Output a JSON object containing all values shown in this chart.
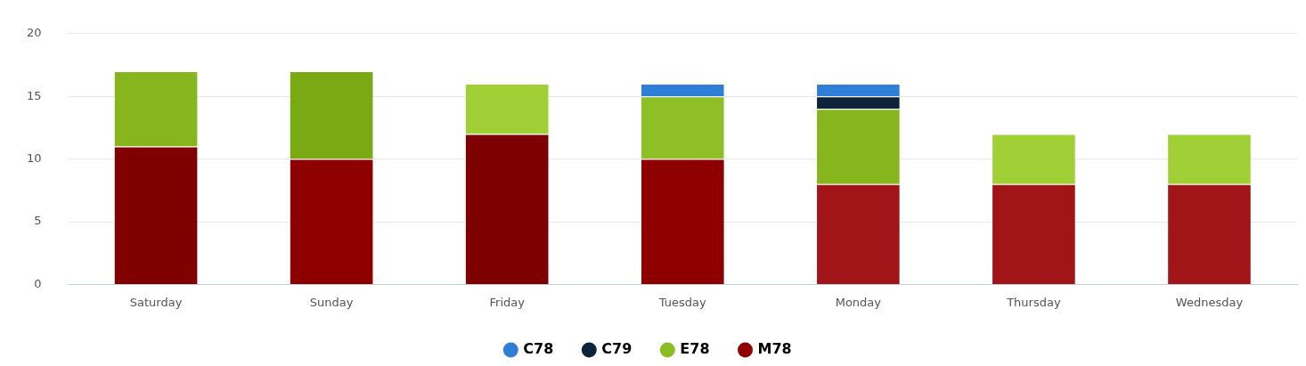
{
  "chart_data": {
    "type": "bar",
    "stacked": true,
    "grid": "y",
    "legend": "bottom",
    "categories": [
      "Saturday",
      "Sunday",
      "Friday",
      "Tuesday",
      "Monday",
      "Thursday",
      "Wednesday"
    ],
    "ylim": [
      0,
      20
    ],
    "yticks": [
      0,
      5,
      10,
      15,
      20
    ],
    "series": [
      {
        "name": "C78",
        "color": "#2f7ed8",
        "colors": [
          "#2f7ed8",
          "#2f7ed8",
          "#2f7ed8",
          "#2f7ed8",
          "#2f7ed8",
          "#2f7ed8",
          "#2f7ed8"
        ],
        "values": [
          null,
          null,
          null,
          1,
          1,
          null,
          null
        ]
      },
      {
        "name": "C79",
        "color": "#0d233a",
        "colors": [
          "#0d233a",
          "#0d233a",
          "#0d233a",
          "#0d233a",
          "#0d233a",
          "#0d233a",
          "#0d233a"
        ],
        "values": [
          null,
          null,
          null,
          null,
          1,
          null,
          null
        ]
      },
      {
        "name": "E78",
        "color": "#8bbc21",
        "colors": [
          "#86b51e",
          "#79a913",
          "#a1cf36",
          "#8fbf26",
          "#86b51e",
          "#a1cf36",
          "#a1cf36"
        ],
        "values": [
          6,
          7,
          4,
          5,
          6,
          4,
          4
        ]
      },
      {
        "name": "M78",
        "color": "#910000",
        "colors": [
          "#800000",
          "#8e0000",
          "#7f0000",
          "#8e0000",
          "#a11417",
          "#a11417",
          "#a11417"
        ],
        "values": [
          11,
          10,
          12,
          10,
          8,
          8,
          8
        ]
      }
    ]
  }
}
